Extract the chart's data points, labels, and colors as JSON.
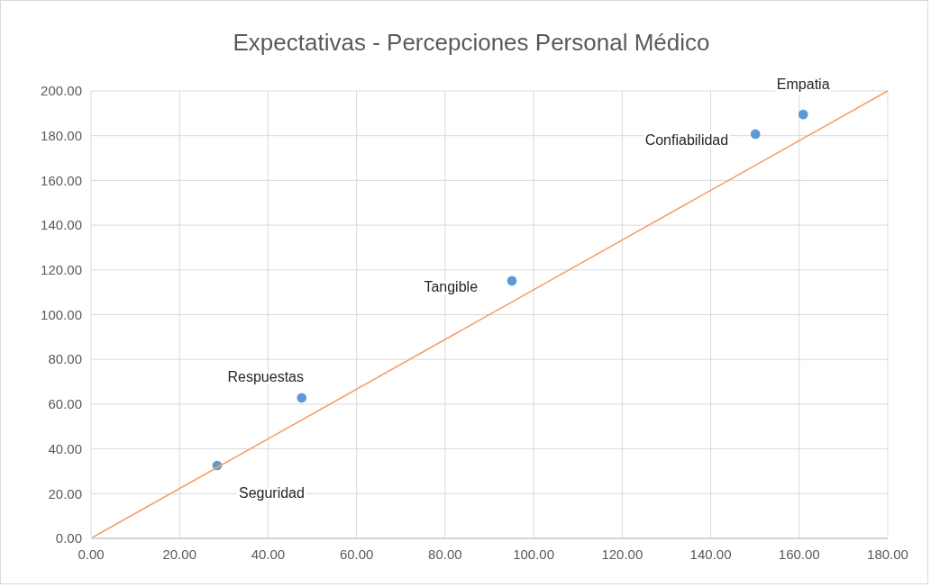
{
  "chart_data": {
    "type": "scatter",
    "title": "Expectativas - Percepciones Personal Médico",
    "series": [
      {
        "color": "#5b9bd5",
        "marker": "circle",
        "x": [
          28.5,
          47.6,
          95.1,
          150.1,
          160.9
        ],
        "values": [
          32.6,
          62.8,
          115.1,
          180.7,
          189.5
        ]
      },
      {
        "type": "line",
        "color": "#f4a36b",
        "x": [
          0.4,
          180
        ],
        "values": [
          0.5,
          200
        ]
      }
    ],
    "annotations": [
      {
        "text": "Seguridad",
        "x": 28.5,
        "y": 32.6
      },
      {
        "text": "Respuestas",
        "x": 47.6,
        "y": 62.8
      },
      {
        "text": "Tangible",
        "x": 95.1,
        "y": 115.1
      },
      {
        "text": "Confiabilidad",
        "x": 150.1,
        "y": 180.7
      },
      {
        "text": "Empatia",
        "x": 160.9,
        "y": 189.5
      }
    ],
    "xlim": [
      0,
      180
    ],
    "ylim": [
      0,
      200
    ],
    "xticks": [
      {
        "value": 0,
        "label": "0.00"
      },
      {
        "value": 20,
        "label": "20.00"
      },
      {
        "value": 40,
        "label": "40.00"
      },
      {
        "value": 60,
        "label": "60.00"
      },
      {
        "value": 80,
        "label": "80.00"
      },
      {
        "value": 100,
        "label": "100.00"
      },
      {
        "value": 120,
        "label": "120.00"
      },
      {
        "value": 140,
        "label": "140.00"
      },
      {
        "value": 160,
        "label": "160.00"
      },
      {
        "value": 180,
        "label": "180.00"
      }
    ],
    "yticks": [
      {
        "value": 0,
        "label": "0.00"
      },
      {
        "value": 20,
        "label": "20.00"
      },
      {
        "value": 40,
        "label": "40.00"
      },
      {
        "value": 60,
        "label": "60.00"
      },
      {
        "value": 80,
        "label": "80.00"
      },
      {
        "value": 100,
        "label": "100.00"
      },
      {
        "value": 120,
        "label": "120.00"
      },
      {
        "value": 140,
        "label": "140.00"
      },
      {
        "value": 160,
        "label": "160.00"
      },
      {
        "value": 180,
        "label": "180.00"
      },
      {
        "value": 200,
        "label": "200.00"
      }
    ],
    "grid": true,
    "line_style": "solid"
  }
}
